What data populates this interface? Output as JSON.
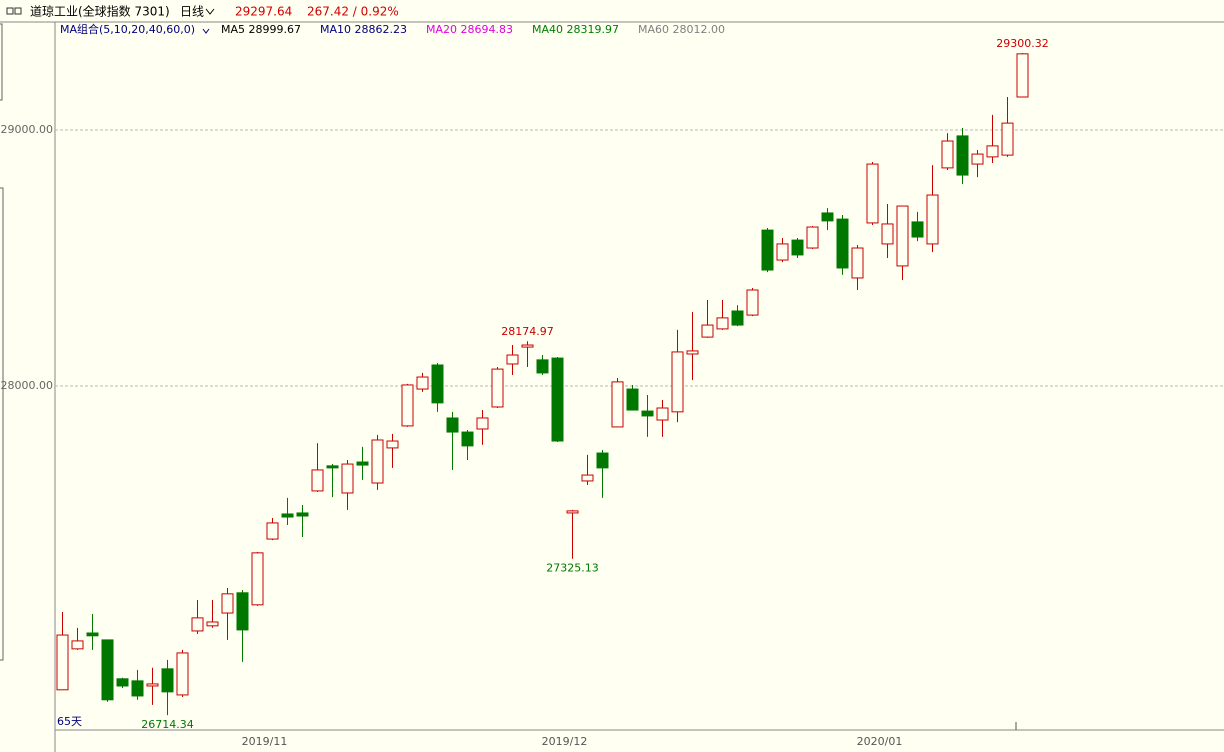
{
  "chart_data": {
    "type": "candlestick",
    "title": "道琼工业(全球指数 7301)",
    "period": "日线",
    "last_price": "29297.64",
    "change": "267.42 / 0.92%",
    "ma_group": "MA组合(5,10,20,40,60,0)",
    "ma_labels": [
      {
        "text": "MA5 28999.67",
        "color": "#000000"
      },
      {
        "text": "MA10 28862.23",
        "color": "#00007f"
      },
      {
        "text": "MA20 28694.83",
        "color": "#e000e0"
      },
      {
        "text": "MA40 28319.97",
        "color": "#008000"
      },
      {
        "text": "MA60 28012.00",
        "color": "#808080"
      }
    ],
    "bar_count": "65天",
    "up_color": "#c80000",
    "down_color": "#007800",
    "grid": true,
    "ylim": [
      26656,
      29422
    ],
    "yticks": [
      {
        "value": 28000,
        "label": "28000.00"
      },
      {
        "value": 29000,
        "label": "29000.00"
      }
    ],
    "categories": [
      null,
      null,
      null,
      null,
      null,
      null,
      null,
      null,
      null,
      null,
      null,
      null,
      null,
      "2019/11",
      null,
      null,
      null,
      null,
      null,
      null,
      null,
      null,
      null,
      null,
      null,
      null,
      null,
      null,
      null,
      null,
      null,
      null,
      null,
      "2019/12",
      null,
      null,
      null,
      null,
      null,
      null,
      null,
      null,
      null,
      null,
      null,
      null,
      null,
      null,
      null,
      null,
      null,
      null,
      null,
      null,
      "2020/01",
      null,
      null,
      null,
      null,
      null,
      null,
      null,
      null,
      null,
      null
    ],
    "open": [
      26813,
      26973,
      27035,
      27008,
      26856,
      26848,
      26828,
      26895,
      26793,
      27043,
      27063,
      27113,
      27192,
      27145,
      27402,
      27500,
      27504,
      27590,
      27688,
      27582,
      27703,
      27621,
      27758,
      27844,
      27988,
      28082,
      27875,
      27820,
      27832,
      27918,
      28086,
      28152,
      28102,
      28109,
      27504,
      27629,
      27738,
      27840,
      27988,
      27902,
      27867,
      27899,
      28125,
      28191,
      28223,
      28293,
      28277,
      28609,
      28492,
      28570,
      28539,
      28676,
      28652,
      28422,
      28637,
      28555,
      28469,
      28641,
      28555,
      28852,
      28977,
      28867,
      28895,
      28902,
      29129
    ],
    "high": [
      27117,
      27055,
      27109,
      27008,
      26860,
      26891,
      26899,
      26930,
      26969,
      27164,
      27164,
      27211,
      27203,
      27352,
      27484,
      27563,
      27535,
      27777,
      27695,
      27711,
      27762,
      27809,
      27813,
      28008,
      28051,
      28090,
      27899,
      27828,
      27906,
      28074,
      28160,
      28174.97,
      28121,
      28113,
      27516,
      27731,
      27750,
      28031,
      28004,
      27965,
      27945,
      28219,
      28289,
      28336,
      28336,
      28316,
      28383,
      28617,
      28578,
      28578,
      28625,
      28695,
      28668,
      28551,
      28875,
      28711,
      28703,
      28680,
      28863,
      28988,
      29008,
      28922,
      29059,
      29129,
      29300.32
    ],
    "low": [
      26813,
      26969,
      26969,
      26766,
      26820,
      26774,
      26754,
      26714.34,
      26785,
      27031,
      27055,
      27008,
      26922,
      27141,
      27398,
      27457,
      27410,
      27586,
      27566,
      27516,
      27633,
      27594,
      27680,
      27840,
      27977,
      27899,
      27672,
      27711,
      27770,
      27914,
      28043,
      28074,
      28043,
      27781,
      27325.13,
      27613,
      27563,
      27840,
      27906,
      27801,
      27801,
      27859,
      28023,
      28188,
      28219,
      28234,
      28273,
      28445,
      28484,
      28500,
      28535,
      28609,
      28434,
      28375,
      28629,
      28500,
      28414,
      28566,
      28523,
      28844,
      28789,
      28816,
      28871,
      28895,
      29129
    ],
    "close": [
      27027,
      27004,
      27024,
      26774,
      26828,
      26789,
      26836,
      26805,
      26957,
      27094,
      27078,
      27188,
      27047,
      27348,
      27465,
      27488,
      27492,
      27672,
      27680,
      27695,
      27691,
      27789,
      27785,
      28004,
      28035,
      27934,
      27820,
      27766,
      27875,
      28066,
      28121,
      28160,
      28051,
      27785,
      27512,
      27652,
      27680,
      28016,
      27906,
      27883,
      27914,
      28133,
      28137,
      28238,
      28266,
      28238,
      28375,
      28453,
      28555,
      28512,
      28621,
      28645,
      28461,
      28539,
      28867,
      28633,
      28703,
      28582,
      28746,
      28957,
      28824,
      28906,
      28938,
      29027,
      29297.64
    ]
  }
}
